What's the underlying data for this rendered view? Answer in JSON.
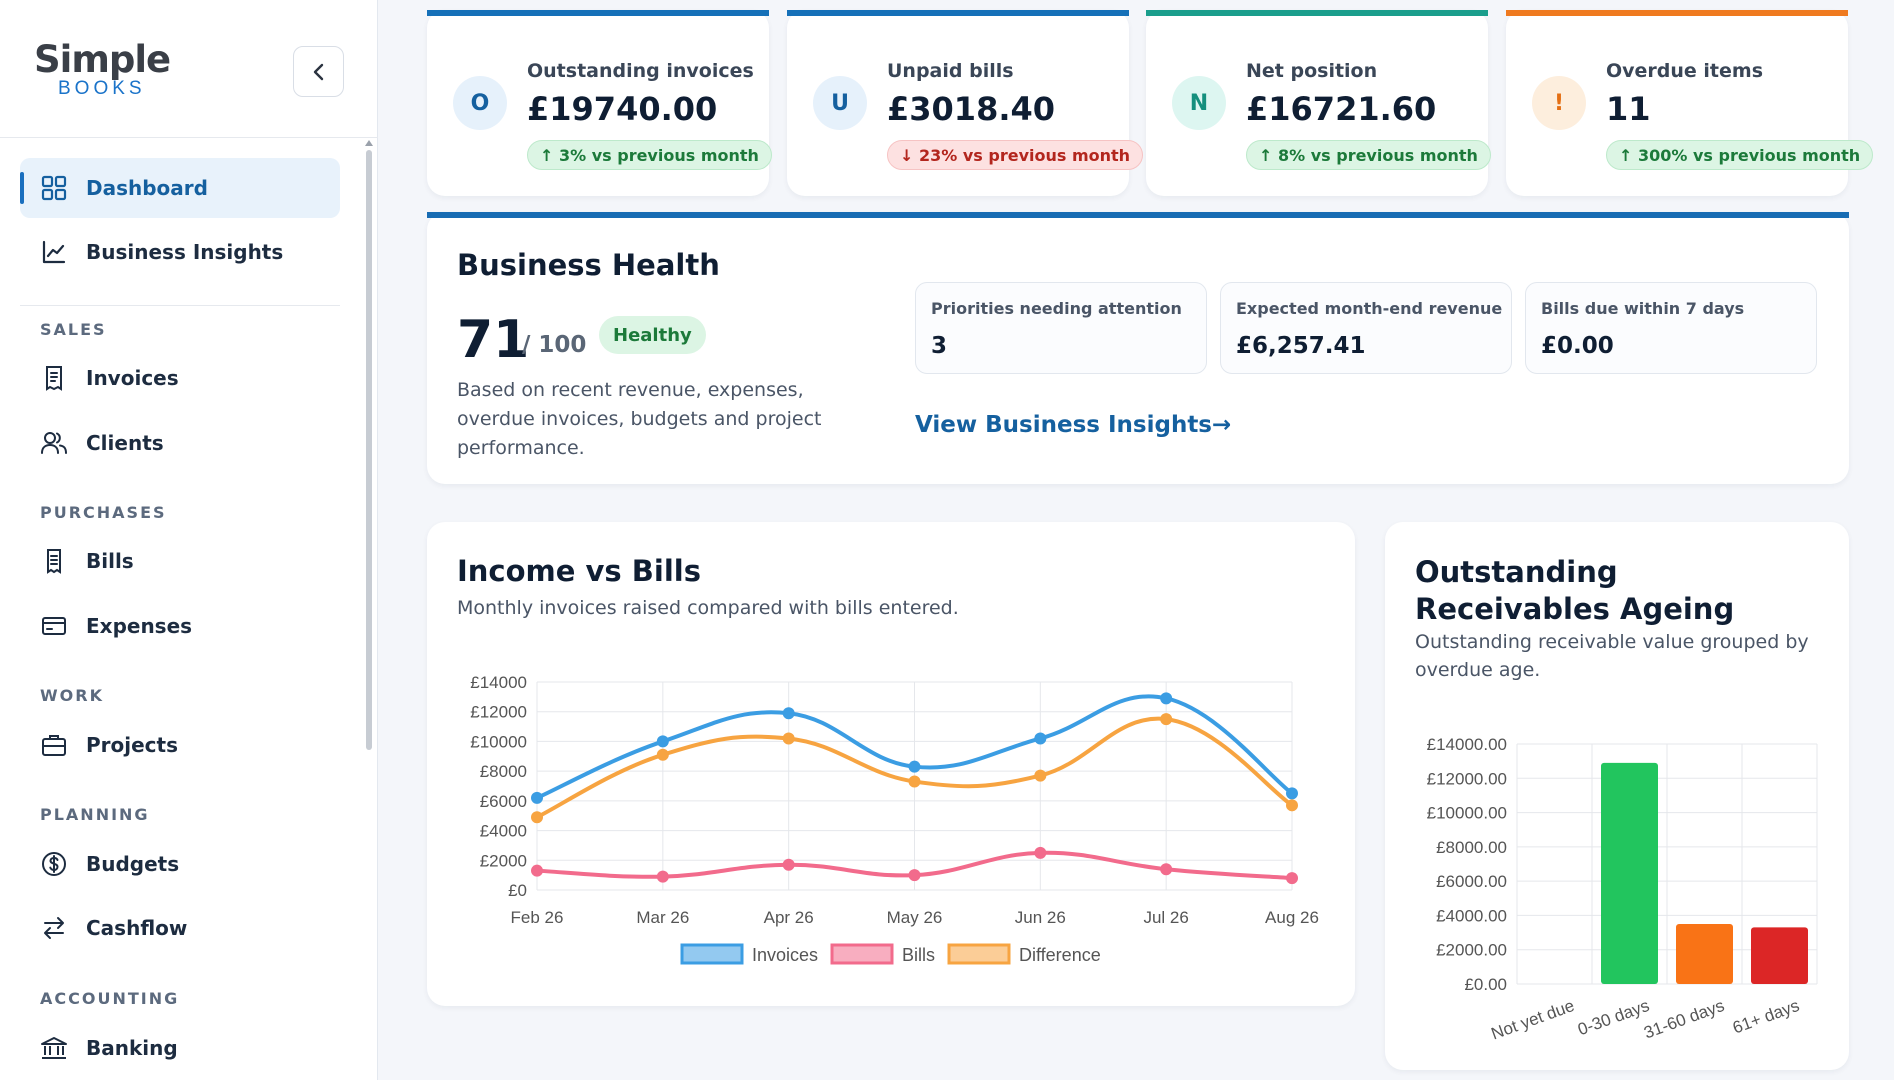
{
  "brand": {
    "name": "Simple",
    "sub": "BOOKS"
  },
  "sidebar": {
    "items": [
      {
        "key": "dashboard",
        "label": "Dashboard"
      },
      {
        "key": "insights",
        "label": "Business Insights"
      },
      {
        "key": "invoices",
        "label": "Invoices"
      },
      {
        "key": "clients",
        "label": "Clients"
      },
      {
        "key": "bills",
        "label": "Bills"
      },
      {
        "key": "expenses",
        "label": "Expenses"
      },
      {
        "key": "projects",
        "label": "Projects"
      },
      {
        "key": "budgets",
        "label": "Budgets"
      },
      {
        "key": "cashflow",
        "label": "Cashflow"
      },
      {
        "key": "banking",
        "label": "Banking"
      }
    ],
    "sections": [
      "SALES",
      "PURCHASES",
      "WORK",
      "PLANNING",
      "ACCOUNTING"
    ],
    "active": "Dashboard"
  },
  "stats": [
    {
      "badge": "O",
      "label": "Outstanding invoices",
      "value": "£19740.00",
      "trend": "↑ 3% vs previous month",
      "trend_dir": "up",
      "accent": "#1570b8",
      "badge_bg": "#e6f1fb",
      "badge_fg": "#15609f"
    },
    {
      "badge": "U",
      "label": "Unpaid bills",
      "value": "£3018.40",
      "trend": "↓ 23% vs previous month",
      "trend_dir": "down",
      "accent": "#1570b8",
      "badge_bg": "#e6f1fb",
      "badge_fg": "#15609f"
    },
    {
      "badge": "N",
      "label": "Net position",
      "value": "£16721.60",
      "trend": "↑ 8% vs previous month",
      "trend_dir": "up",
      "accent": "#1a9e8c",
      "badge_bg": "#ddf6f1",
      "badge_fg": "#148f7d"
    },
    {
      "badge": "!",
      "label": "Overdue items",
      "value": "11",
      "trend": "↑ 300% vs previous month",
      "trend_dir": "up",
      "accent": "#ef7a1f",
      "badge_bg": "#fdeedd",
      "badge_fg": "#e46f14"
    }
  ],
  "health": {
    "title": "Business Health",
    "score": "71",
    "out_of": "/ 100",
    "status": "Healthy",
    "description": "Based on recent revenue, expenses, overdue invoices, budgets and project performance.",
    "metrics": [
      {
        "label": "Priorities needing attention",
        "value": "3"
      },
      {
        "label": "Expected month-end revenue",
        "value": "£6,257.41"
      },
      {
        "label": "Bills due within 7 days",
        "value": "£0.00"
      }
    ],
    "link": "View Business Insights→"
  },
  "income_card": {
    "title": "Income vs Bills",
    "subtitle": "Monthly invoices raised compared with bills entered."
  },
  "ageing_card": {
    "title": "Outstanding Receivables Ageing",
    "subtitle": "Outstanding receivable value grouped by overdue age."
  },
  "chart_data": [
    {
      "type": "line",
      "categories": [
        "Feb 26",
        "Mar 26",
        "Apr 26",
        "May 26",
        "Jun 26",
        "Jul 26",
        "Aug 26"
      ],
      "series": [
        {
          "name": "Invoices",
          "values": [
            6200,
            10000,
            11900,
            8300,
            10200,
            12900,
            6500
          ],
          "color": "#3b9de3"
        },
        {
          "name": "Bills",
          "values": [
            1300,
            900,
            1700,
            1000,
            2500,
            1400,
            800
          ],
          "color": "#f26b8c"
        },
        {
          "name": "Difference",
          "values": [
            4900,
            9100,
            10200,
            7300,
            7700,
            11500,
            5700
          ],
          "color": "#f7a441"
        }
      ],
      "y_ticks": [
        "£0",
        "£2000",
        "£4000",
        "£6000",
        "£8000",
        "£10000",
        "£12000",
        "£14000"
      ],
      "ylim": [
        0,
        14000
      ],
      "grid": true,
      "legend": "bottom"
    },
    {
      "type": "bar",
      "categories": [
        "Not yet due",
        "0-30 days",
        "31-60 days",
        "61+ days"
      ],
      "values": [
        0,
        12900,
        3500,
        3300
      ],
      "colors": [
        "#22c55e",
        "#22c55e",
        "#f97316",
        "#dc2626"
      ],
      "y_ticks": [
        "£0.00",
        "£2000.00",
        "£4000.00",
        "£6000.00",
        "£8000.00",
        "£10000.00",
        "£12000.00",
        "£14000.00"
      ],
      "ylim": [
        0,
        14000
      ],
      "grid": true
    }
  ]
}
